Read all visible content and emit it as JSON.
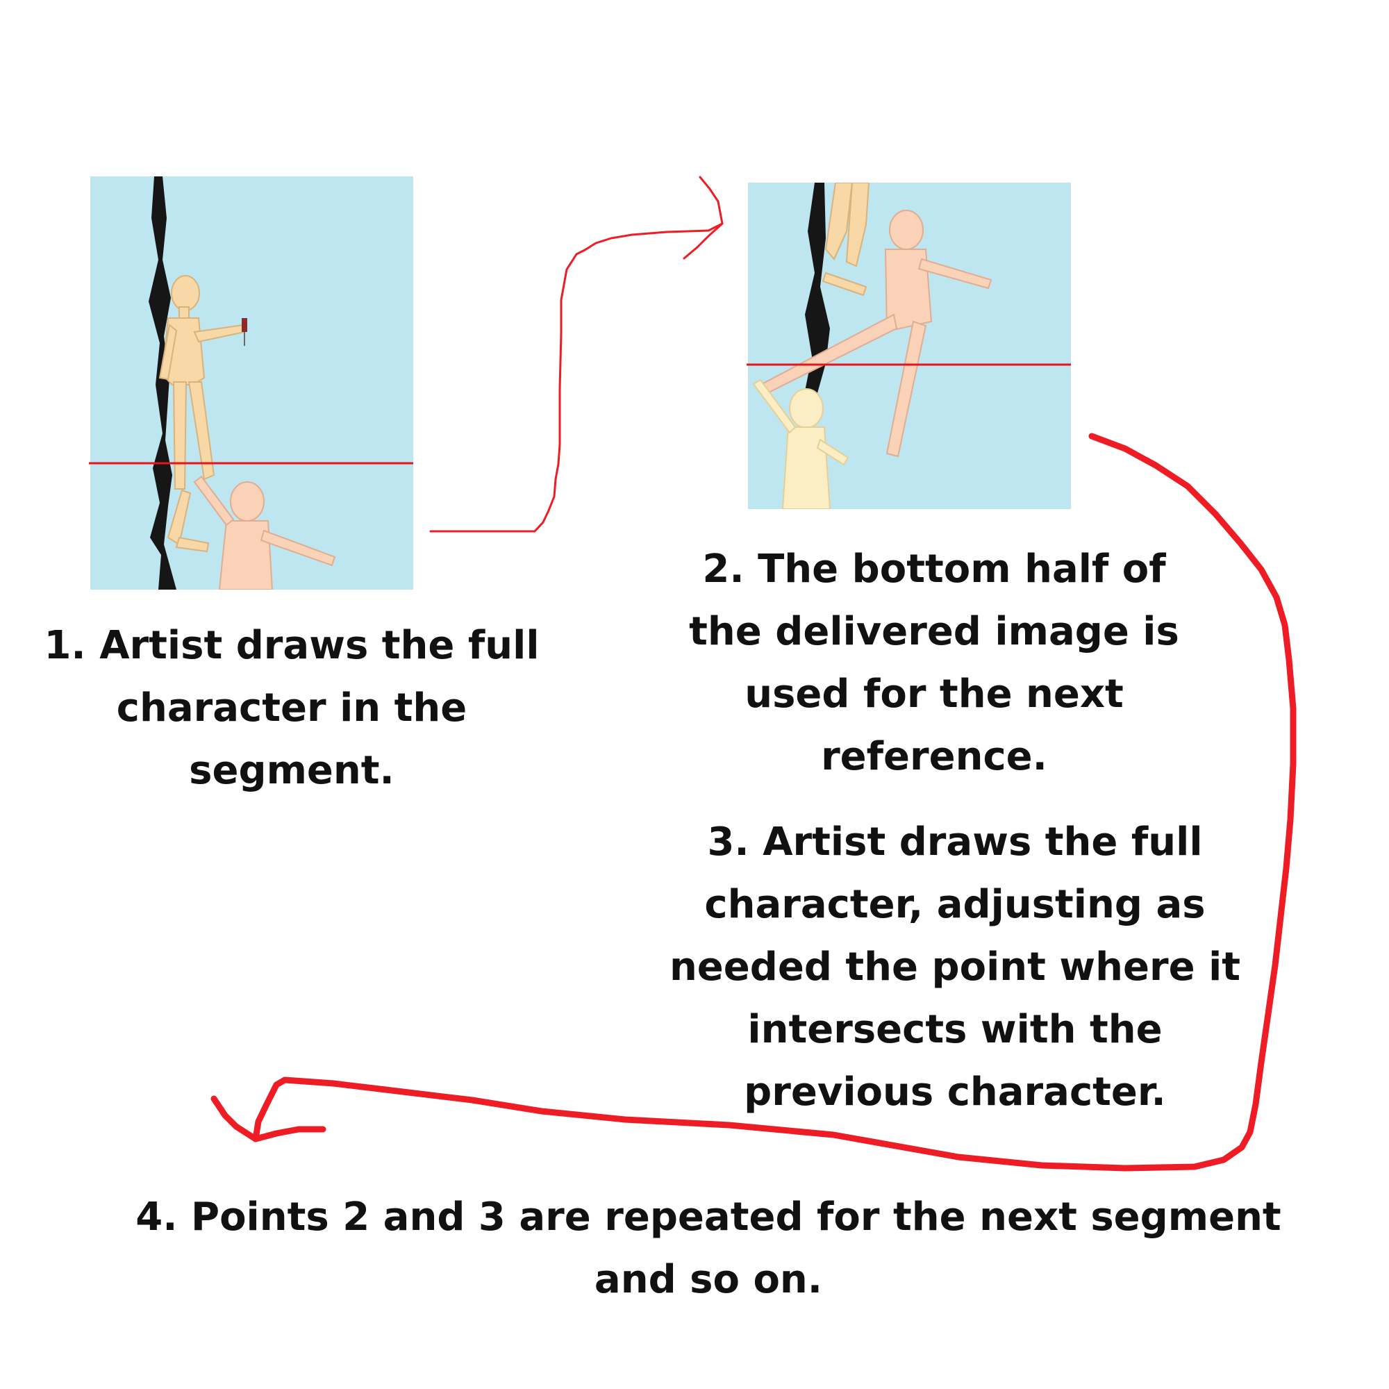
{
  "steps": {
    "step1": "1. Artist draws the full character in the segment.",
    "step2": "2. The bottom half of the delivered image is used for the next reference.",
    "step3": "3. Artist draws the full character, adjusting as needed the point where it intersects with the previous character.",
    "step4": "4. Points 2 and 3 are repeated for the next segment and so on."
  },
  "colors": {
    "panel_background": "#bee6f0",
    "cut_line": "#e8141c",
    "arrow": "#ee1c24",
    "skin_tan": "#f7d8a6",
    "skin_peach": "#f9d2b8",
    "skin_pale": "#fbeec4",
    "rock": "#161616",
    "text": "#111111"
  }
}
